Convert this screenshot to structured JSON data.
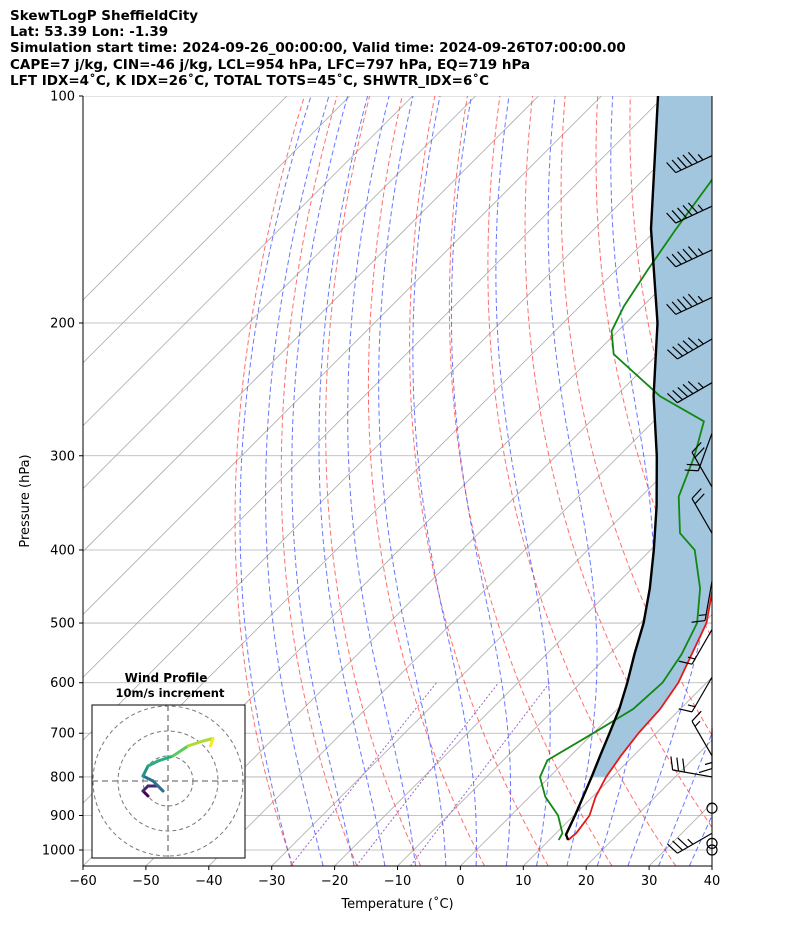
{
  "header": {
    "title": "SkewTLogP SheffieldCity",
    "location": "Lat: 53.39   Lon: -1.39",
    "times": "Simulation start time: 2024-09-26_00:00:00, Valid time: 2024-09-26T07:00:00.00",
    "params": "CAPE=7 j/kg, CIN=-46 j/kg, LCL=954 hPa, LFC=797 hPa, EQ=719 hPa",
    "indices": "LFT IDX=4˚C, K IDX=26˚C, TOTAL TOTS=45˚C, SHWTR_IDX=6˚C"
  },
  "chart_data": {
    "type": "line",
    "subtype": "skew-T log-P diagram",
    "xlabel": "Temperature (˚C)",
    "ylabel": "Pressure (hPa)",
    "xlim": [
      -60,
      40
    ],
    "ylim": [
      1050,
      100
    ],
    "y_scale": "log",
    "x_ticks": [
      -60,
      -50,
      -40,
      -30,
      -20,
      -10,
      0,
      10,
      20,
      30,
      40
    ],
    "y_ticks": [
      100,
      200,
      300,
      400,
      500,
      600,
      700,
      800,
      900,
      1000
    ],
    "grid": true,
    "colors": {
      "temperature": "#e31a1c",
      "dewpoint": "#118811",
      "parcel": "#000000",
      "cape_fill": "#a3c6df",
      "dry_adiabats": "#ff5555",
      "moist_adiabats": "#4455ff",
      "mixing_ratio": "#9966cc",
      "isotherms": "#aaaaaa"
    },
    "temperature_profile": [
      {
        "p": 970,
        "t": 13
      },
      {
        "p": 950,
        "t": 13.2
      },
      {
        "p": 900,
        "t": 12.5
      },
      {
        "p": 850,
        "t": 10.5
      },
      {
        "p": 800,
        "t": 9
      },
      {
        "p": 750,
        "t": 8
      },
      {
        "p": 700,
        "t": 7.2
      },
      {
        "p": 650,
        "t": 6.8
      },
      {
        "p": 600,
        "t": 5.5
      },
      {
        "p": 500,
        "t": 0.5
      },
      {
        "p": 450,
        "t": -4
      },
      {
        "p": 400,
        "t": -9.5
      },
      {
        "p": 350,
        "t": -15.5
      },
      {
        "p": 320,
        "t": -19.5
      },
      {
        "p": 300,
        "t": -22.5
      },
      {
        "p": 290,
        "t": -23.5
      },
      {
        "p": 270,
        "t": -23
      },
      {
        "p": 260,
        "t": -21
      },
      {
        "p": 250,
        "t": -18.5
      },
      {
        "p": 230,
        "t": -16
      },
      {
        "p": 200,
        "t": -13.5
      },
      {
        "p": 180,
        "t": -12
      },
      {
        "p": 160,
        "t": -10
      },
      {
        "p": 140,
        "t": -7.5
      },
      {
        "p": 120,
        "t": -6
      },
      {
        "p": 110,
        "t": -4
      },
      {
        "p": 100,
        "t": -3
      }
    ],
    "dewpoint_profile": [
      {
        "p": 970,
        "t": 11.5
      },
      {
        "p": 950,
        "t": 11
      },
      {
        "p": 900,
        "t": 7.5
      },
      {
        "p": 850,
        "t": 2.5
      },
      {
        "p": 800,
        "t": -1.5
      },
      {
        "p": 760,
        "t": -3
      },
      {
        "p": 700,
        "t": 0
      },
      {
        "p": 650,
        "t": 2.5
      },
      {
        "p": 600,
        "t": 3
      },
      {
        "p": 550,
        "t": 1.5
      },
      {
        "p": 500,
        "t": -1
      },
      {
        "p": 450,
        "t": -6
      },
      {
        "p": 400,
        "t": -13
      },
      {
        "p": 380,
        "t": -18
      },
      {
        "p": 340,
        "t": -24
      },
      {
        "p": 300,
        "t": -28
      },
      {
        "p": 270,
        "t": -32
      },
      {
        "p": 250,
        "t": -43
      },
      {
        "p": 220,
        "t": -57
      },
      {
        "p": 205,
        "t": -61
      },
      {
        "p": 190,
        "t": -63
      },
      {
        "p": 170,
        "t": -65
      },
      {
        "p": 150,
        "t": -67
      },
      {
        "p": 130,
        "t": -69
      },
      {
        "p": 110,
        "t": -72
      },
      {
        "p": 100,
        "t": -73
      }
    ],
    "parcel_profile": [
      {
        "p": 970,
        "t": 13
      },
      {
        "p": 954,
        "t": 11.8
      },
      {
        "p": 900,
        "t": 10.2
      },
      {
        "p": 850,
        "t": 8.5
      },
      {
        "p": 800,
        "t": 6.7
      },
      {
        "p": 750,
        "t": 4.7
      },
      {
        "p": 700,
        "t": 2.6
      },
      {
        "p": 650,
        "t": 0.3
      },
      {
        "p": 600,
        "t": -2.6
      },
      {
        "p": 550,
        "t": -6
      },
      {
        "p": 500,
        "t": -9.5
      },
      {
        "p": 450,
        "t": -14
      },
      {
        "p": 400,
        "t": -19.5
      },
      {
        "p": 350,
        "t": -26
      },
      {
        "p": 300,
        "t": -34
      },
      {
        "p": 250,
        "t": -44
      },
      {
        "p": 200,
        "t": -55
      },
      {
        "p": 150,
        "t": -71
      },
      {
        "p": 120,
        "t": -82
      },
      {
        "p": 100,
        "t": -91
      }
    ],
    "wind_barbs": [
      {
        "p": 120,
        "speed_kt": 55,
        "direction_deg": 245
      },
      {
        "p": 140,
        "speed_kt": 55,
        "direction_deg": 245
      },
      {
        "p": 160,
        "speed_kt": 55,
        "direction_deg": 245
      },
      {
        "p": 185,
        "speed_kt": 55,
        "direction_deg": 245
      },
      {
        "p": 210,
        "speed_kt": 55,
        "direction_deg": 240
      },
      {
        "p": 240,
        "speed_kt": 55,
        "direction_deg": 240
      },
      {
        "p": 280,
        "speed_kt": 20,
        "direction_deg": 200
      },
      {
        "p": 330,
        "speed_kt": 20,
        "direction_deg": 330
      },
      {
        "p": 380,
        "speed_kt": 20,
        "direction_deg": 330
      },
      {
        "p": 440,
        "speed_kt": 15,
        "direction_deg": 190
      },
      {
        "p": 510,
        "speed_kt": 15,
        "direction_deg": 210
      },
      {
        "p": 590,
        "speed_kt": 15,
        "direction_deg": 210
      },
      {
        "p": 690,
        "speed_kt": 15,
        "direction_deg": 180
      },
      {
        "p": 750,
        "speed_kt": 15,
        "direction_deg": 330
      },
      {
        "p": 800,
        "speed_kt": 30,
        "direction_deg": 280
      },
      {
        "p": 880,
        "speed_kt": 0,
        "direction_deg": 0
      },
      {
        "p": 950,
        "speed_kt": 35,
        "direction_deg": 240
      },
      {
        "p": 980,
        "speed_kt": 0,
        "direction_deg": 0
      },
      {
        "p": 1000,
        "speed_kt": 0,
        "direction_deg": 0
      }
    ],
    "inset": {
      "title": "Wind Profile",
      "subtitle": "10m/s increment",
      "rings_m_s": [
        10,
        20,
        30
      ],
      "hodograph_uv": [
        [
          -8,
          -6
        ],
        [
          -10,
          -4
        ],
        [
          -8,
          -2
        ],
        [
          -4,
          -2
        ],
        [
          -2,
          -4
        ],
        [
          -6,
          0
        ],
        [
          -10,
          2
        ],
        [
          -8,
          6
        ],
        [
          -4,
          8
        ],
        [
          2,
          10
        ],
        [
          8,
          14
        ],
        [
          14,
          16
        ],
        [
          18,
          17
        ],
        [
          17,
          14
        ]
      ]
    }
  }
}
